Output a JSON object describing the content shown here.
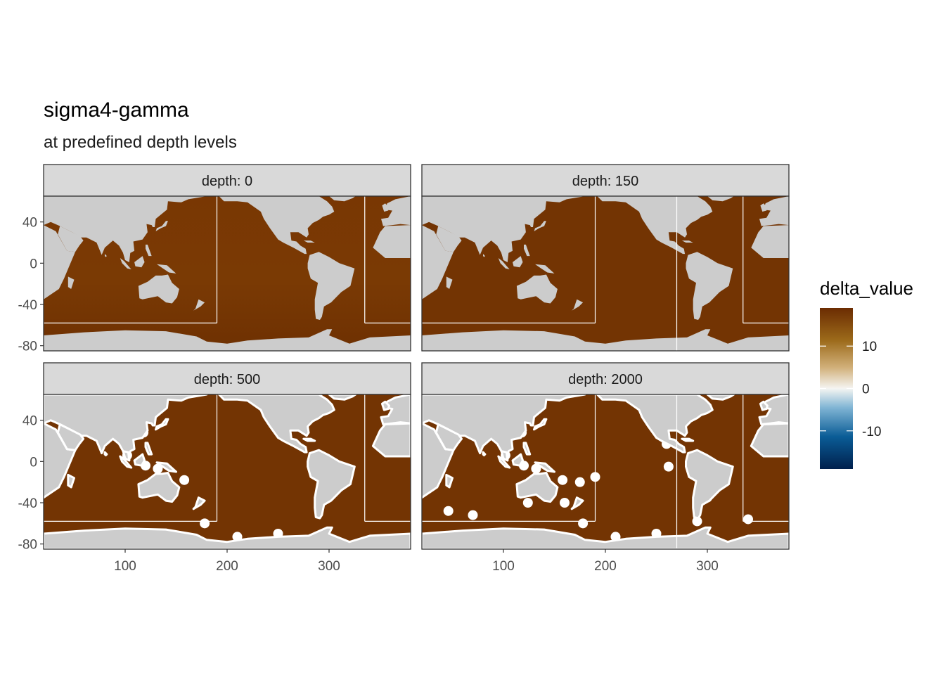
{
  "title": "sigma4-gamma",
  "subtitle": "at predefined depth levels",
  "colors": {
    "land": "#cccccc",
    "strip": "#d9d9d9",
    "panel_border": "#333333",
    "ocean_positive": "#733403",
    "ocean_surface": "#7a3a05",
    "missing": "#ffffff"
  },
  "chart_data": {
    "type": "heatmap",
    "facet_variable": "depth",
    "facets": [
      {
        "label": "depth: 0",
        "depth": 0
      },
      {
        "label": "depth: 150",
        "depth": 150
      },
      {
        "label": "depth: 500",
        "depth": 500
      },
      {
        "label": "depth: 2000",
        "depth": 2000
      }
    ],
    "x": {
      "label": "",
      "lim": [
        20,
        380
      ],
      "ticks": [
        100,
        200,
        300
      ]
    },
    "y": {
      "label": "",
      "lim": [
        -85,
        65
      ],
      "ticks": [
        40,
        0,
        -40,
        -80
      ]
    },
    "fill": {
      "name": "delta_value",
      "range": [
        -19,
        19
      ],
      "breaks": [
        10,
        0,
        -10
      ],
      "stops": [
        "#00204d",
        "#0a5c96",
        "#7fb4d4",
        "#f5f5f2",
        "#d1b07a",
        "#9c6a1a",
        "#6b2c02"
      ]
    },
    "basin_boundary_lines": {
      "lat": -58,
      "lon": [
        190,
        335,
        270
      ]
    }
  }
}
